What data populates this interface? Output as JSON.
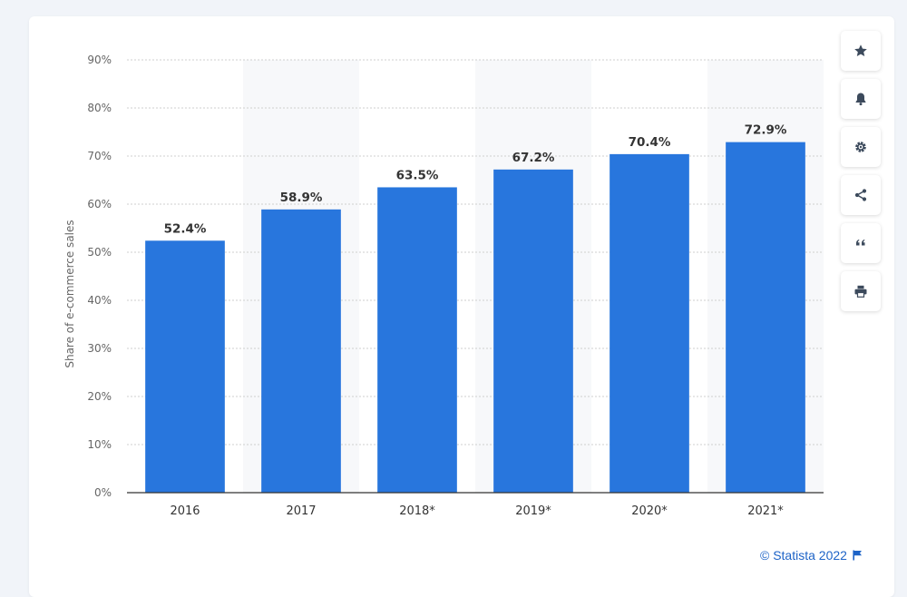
{
  "chart_data": {
    "type": "bar",
    "categories": [
      "2016",
      "2017",
      "2018*",
      "2019*",
      "2020*",
      "2021*"
    ],
    "values": [
      52.4,
      58.9,
      63.5,
      67.2,
      70.4,
      72.9
    ],
    "value_labels": [
      "52.4%",
      "58.9%",
      "63.5%",
      "67.2%",
      "70.4%",
      "72.9%"
    ],
    "title": "",
    "xlabel": "",
    "ylabel": "Share of e-commerce sales",
    "ylim": [
      0,
      90
    ],
    "yticks": [
      "0%",
      "10%",
      "20%",
      "30%",
      "40%",
      "50%",
      "60%",
      "70%",
      "80%",
      "90%"
    ],
    "grid": true,
    "legend": "none",
    "bar_color": "#2876dd"
  },
  "toolbar": {
    "buttons": [
      "star-icon",
      "bell-icon",
      "gear-icon",
      "share-icon",
      "quote-icon",
      "print-icon"
    ]
  },
  "footer": {
    "credit": "© Statista 2022",
    "icon": "flag-icon",
    "color": "#1d63c7"
  }
}
